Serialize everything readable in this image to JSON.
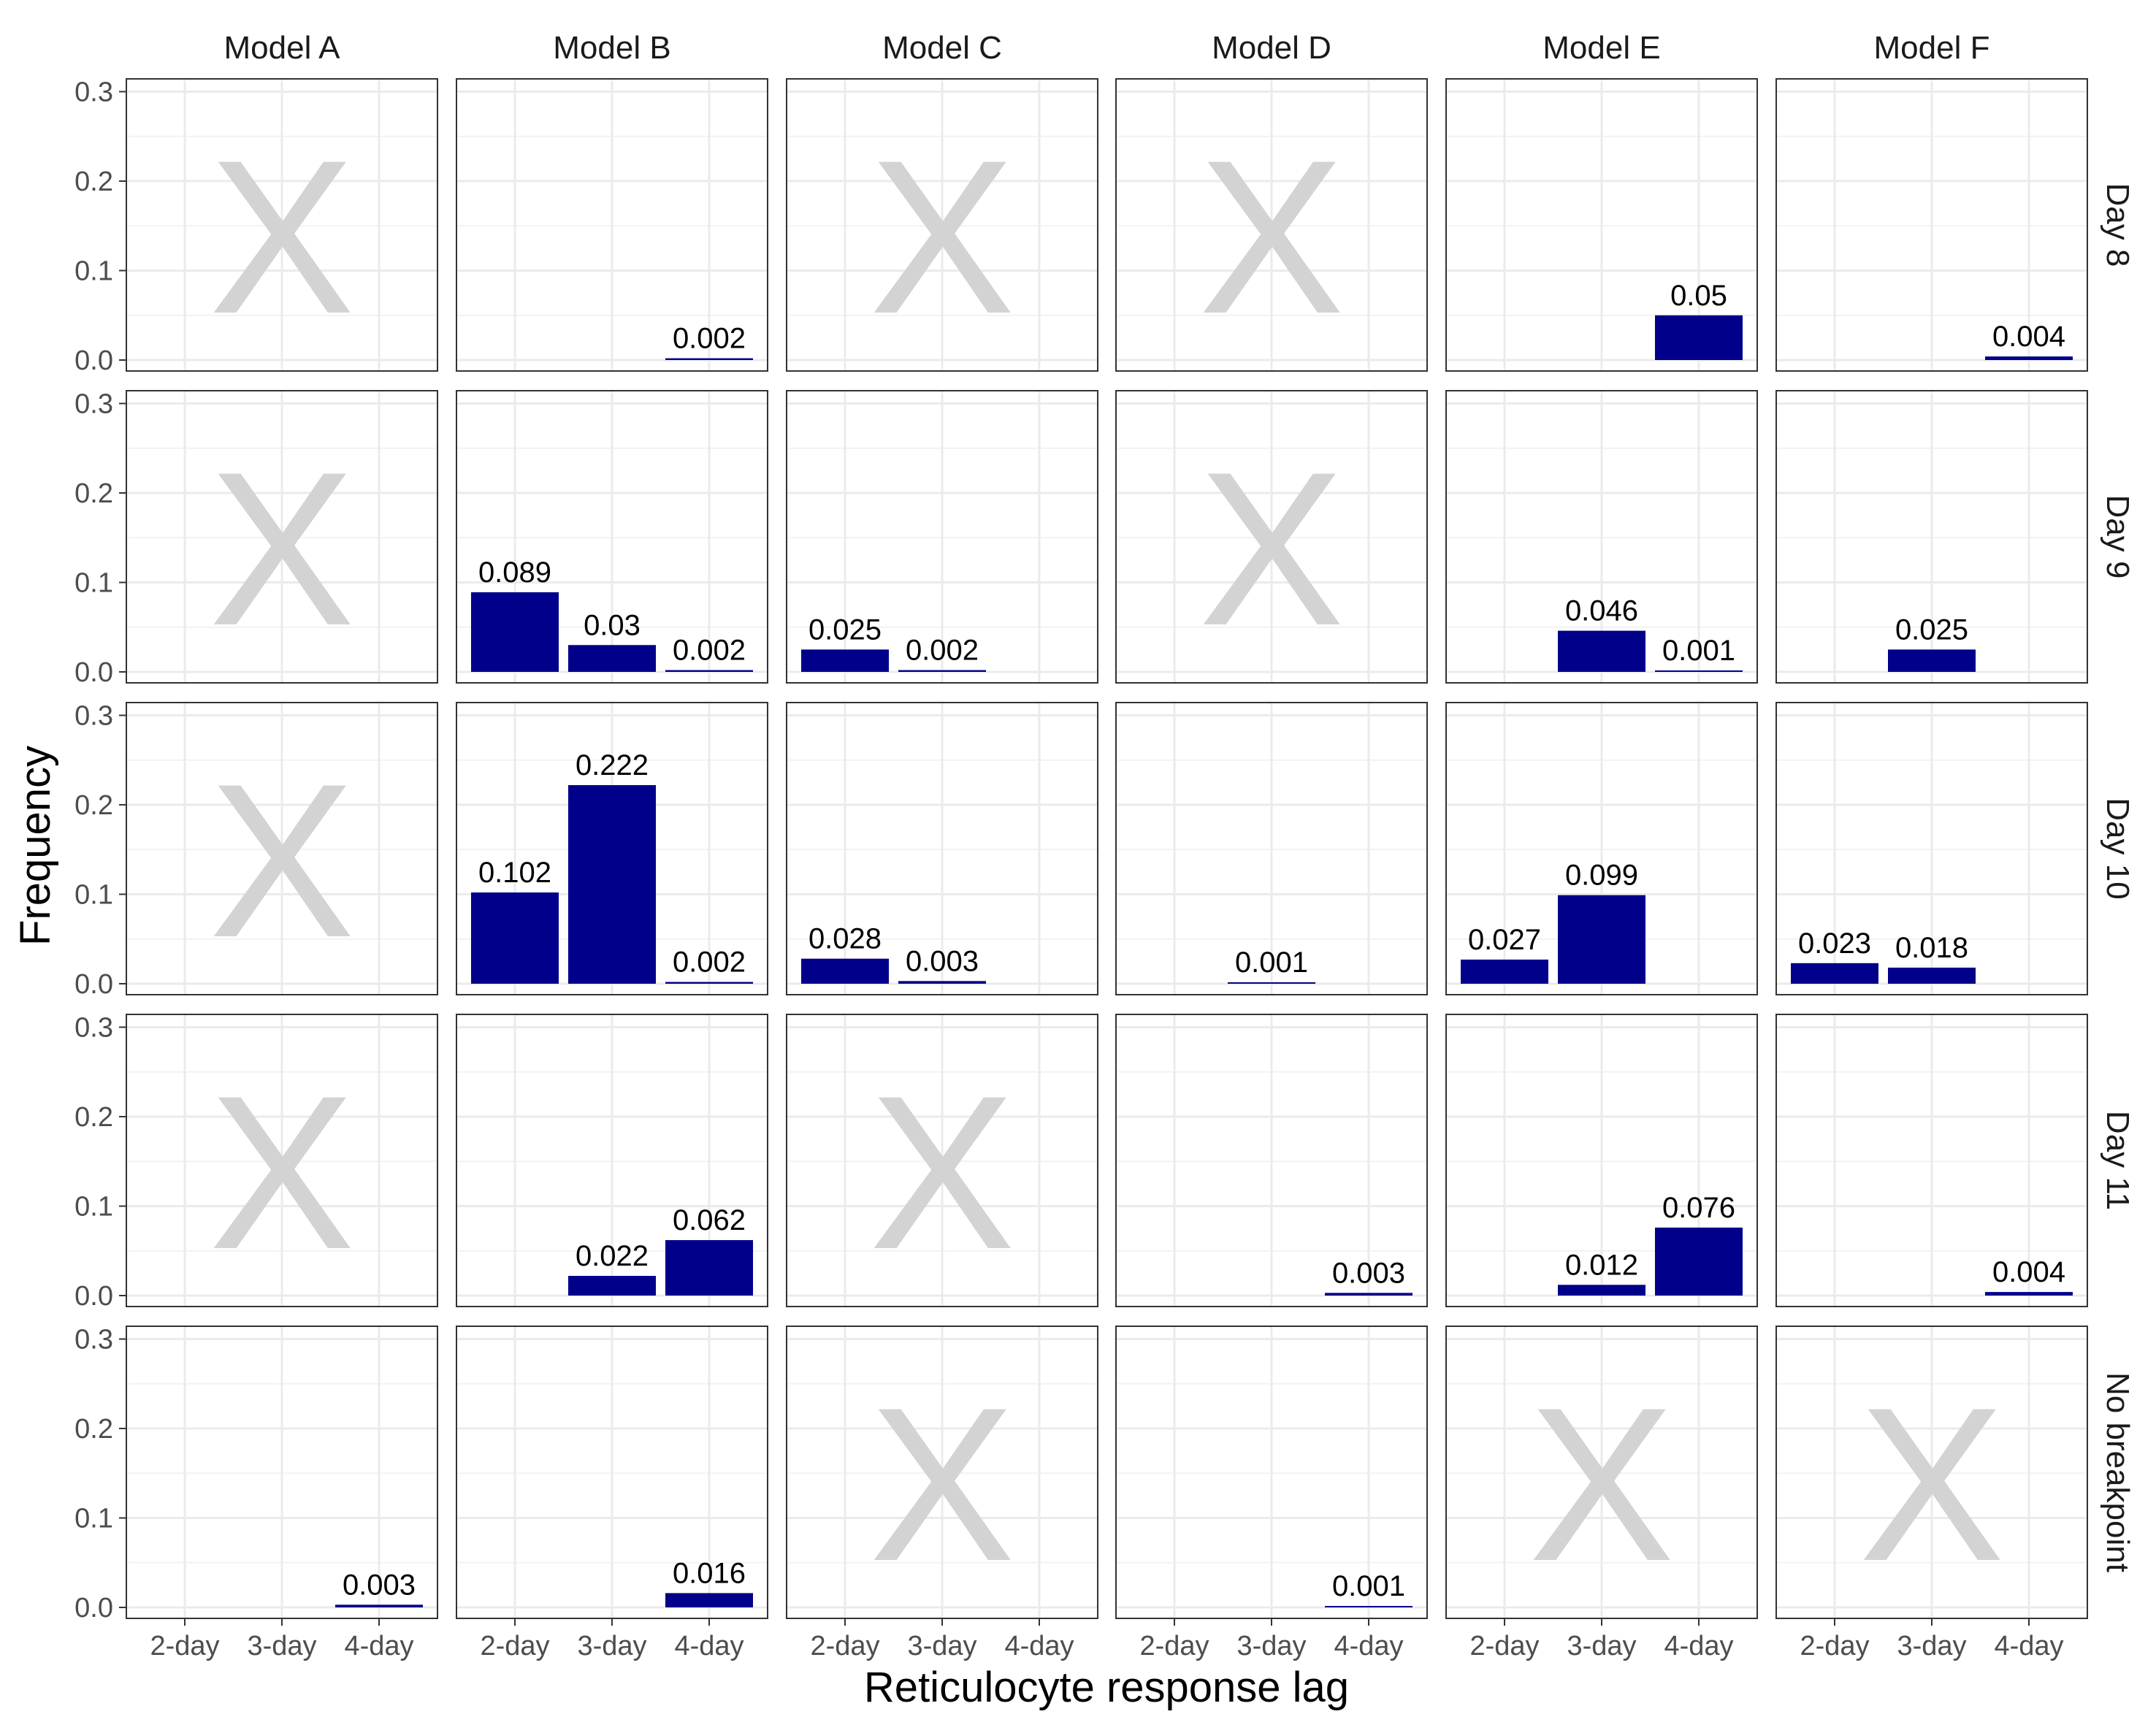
{
  "chart_data": {
    "type": "bar",
    "facet_columns": [
      "Model A",
      "Model B",
      "Model C",
      "Model D",
      "Model E",
      "Model F"
    ],
    "facet_rows": [
      "Day 8",
      "Day 9",
      "Day 10",
      "Day 11",
      "No breakpoint"
    ],
    "categories": [
      "2-day",
      "3-day",
      "4-day"
    ],
    "xlabel": "Reticulocyte response lag",
    "ylabel": "Frequency",
    "ylim": [
      0,
      0.31
    ],
    "yticks": [
      "0.0",
      "0.1",
      "0.2",
      "0.3"
    ],
    "bar_color": "#00008B",
    "missing_marker": "X",
    "missing_color": "#D3D3D3",
    "grid": true,
    "panels": [
      {
        "row": "Day 8",
        "col": "Model A",
        "missing": true,
        "values": [
          null,
          null,
          null
        ],
        "labels": [
          "",
          "",
          ""
        ]
      },
      {
        "row": "Day 8",
        "col": "Model B",
        "missing": false,
        "values": [
          null,
          null,
          0.002
        ],
        "labels": [
          "",
          "",
          "0.002"
        ]
      },
      {
        "row": "Day 8",
        "col": "Model C",
        "missing": true,
        "values": [
          null,
          null,
          null
        ],
        "labels": [
          "",
          "",
          ""
        ]
      },
      {
        "row": "Day 8",
        "col": "Model D",
        "missing": true,
        "values": [
          null,
          null,
          null
        ],
        "labels": [
          "",
          "",
          ""
        ]
      },
      {
        "row": "Day 8",
        "col": "Model E",
        "missing": false,
        "values": [
          null,
          null,
          0.05
        ],
        "labels": [
          "",
          "",
          "0.05"
        ]
      },
      {
        "row": "Day 8",
        "col": "Model F",
        "missing": false,
        "values": [
          null,
          null,
          0.004
        ],
        "labels": [
          "",
          "",
          "0.004"
        ]
      },
      {
        "row": "Day 9",
        "col": "Model A",
        "missing": true,
        "values": [
          null,
          null,
          null
        ],
        "labels": [
          "",
          "",
          ""
        ]
      },
      {
        "row": "Day 9",
        "col": "Model B",
        "missing": false,
        "values": [
          0.089,
          0.03,
          0.002
        ],
        "labels": [
          "0.089",
          "0.03",
          "0.002"
        ]
      },
      {
        "row": "Day 9",
        "col": "Model C",
        "missing": false,
        "values": [
          0.025,
          0.002,
          null
        ],
        "labels": [
          "0.025",
          "0.002",
          ""
        ]
      },
      {
        "row": "Day 9",
        "col": "Model D",
        "missing": true,
        "values": [
          null,
          null,
          null
        ],
        "labels": [
          "",
          "",
          ""
        ]
      },
      {
        "row": "Day 9",
        "col": "Model E",
        "missing": false,
        "values": [
          null,
          0.046,
          0.001
        ],
        "labels": [
          "",
          "0.046",
          "0.001"
        ]
      },
      {
        "row": "Day 9",
        "col": "Model F",
        "missing": false,
        "values": [
          null,
          0.025,
          null
        ],
        "labels": [
          "",
          "0.025",
          ""
        ]
      },
      {
        "row": "Day 10",
        "col": "Model A",
        "missing": true,
        "values": [
          null,
          null,
          null
        ],
        "labels": [
          "",
          "",
          ""
        ]
      },
      {
        "row": "Day 10",
        "col": "Model B",
        "missing": false,
        "values": [
          0.102,
          0.222,
          0.002
        ],
        "labels": [
          "0.102",
          "0.222",
          "0.002"
        ]
      },
      {
        "row": "Day 10",
        "col": "Model C",
        "missing": false,
        "values": [
          0.028,
          0.003,
          null
        ],
        "labels": [
          "0.028",
          "0.003",
          ""
        ]
      },
      {
        "row": "Day 10",
        "col": "Model D",
        "missing": false,
        "values": [
          null,
          0.001,
          null
        ],
        "labels": [
          "",
          "0.001",
          ""
        ]
      },
      {
        "row": "Day 10",
        "col": "Model E",
        "missing": false,
        "values": [
          0.027,
          0.099,
          null
        ],
        "labels": [
          "0.027",
          "0.099",
          ""
        ]
      },
      {
        "row": "Day 10",
        "col": "Model F",
        "missing": false,
        "values": [
          0.023,
          0.018,
          null
        ],
        "labels": [
          "0.023",
          "0.018",
          ""
        ]
      },
      {
        "row": "Day 11",
        "col": "Model A",
        "missing": true,
        "values": [
          null,
          null,
          null
        ],
        "labels": [
          "",
          "",
          ""
        ]
      },
      {
        "row": "Day 11",
        "col": "Model B",
        "missing": false,
        "values": [
          null,
          0.022,
          0.062
        ],
        "labels": [
          "",
          "0.022",
          "0.062"
        ]
      },
      {
        "row": "Day 11",
        "col": "Model C",
        "missing": true,
        "values": [
          null,
          null,
          null
        ],
        "labels": [
          "",
          "",
          ""
        ]
      },
      {
        "row": "Day 11",
        "col": "Model D",
        "missing": false,
        "values": [
          null,
          null,
          0.003
        ],
        "labels": [
          "",
          "",
          "0.003"
        ]
      },
      {
        "row": "Day 11",
        "col": "Model E",
        "missing": false,
        "values": [
          null,
          0.012,
          0.076
        ],
        "labels": [
          "",
          "0.012",
          "0.076"
        ]
      },
      {
        "row": "Day 11",
        "col": "Model F",
        "missing": false,
        "values": [
          null,
          null,
          0.004
        ],
        "labels": [
          "",
          "",
          "0.004"
        ]
      },
      {
        "row": "No breakpoint",
        "col": "Model A",
        "missing": false,
        "values": [
          null,
          null,
          0.003
        ],
        "labels": [
          "",
          "",
          "0.003"
        ]
      },
      {
        "row": "No breakpoint",
        "col": "Model B",
        "missing": false,
        "values": [
          null,
          null,
          0.016
        ],
        "labels": [
          "",
          "",
          "0.016"
        ]
      },
      {
        "row": "No breakpoint",
        "col": "Model C",
        "missing": true,
        "values": [
          null,
          null,
          null
        ],
        "labels": [
          "",
          "",
          ""
        ]
      },
      {
        "row": "No breakpoint",
        "col": "Model D",
        "missing": false,
        "values": [
          null,
          null,
          0.001
        ],
        "labels": [
          "",
          "",
          "0.001"
        ]
      },
      {
        "row": "No breakpoint",
        "col": "Model E",
        "missing": true,
        "values": [
          null,
          null,
          null
        ],
        "labels": [
          "",
          "",
          ""
        ]
      },
      {
        "row": "No breakpoint",
        "col": "Model F",
        "missing": true,
        "values": [
          null,
          null,
          null
        ],
        "labels": [
          "",
          "",
          ""
        ]
      }
    ]
  }
}
